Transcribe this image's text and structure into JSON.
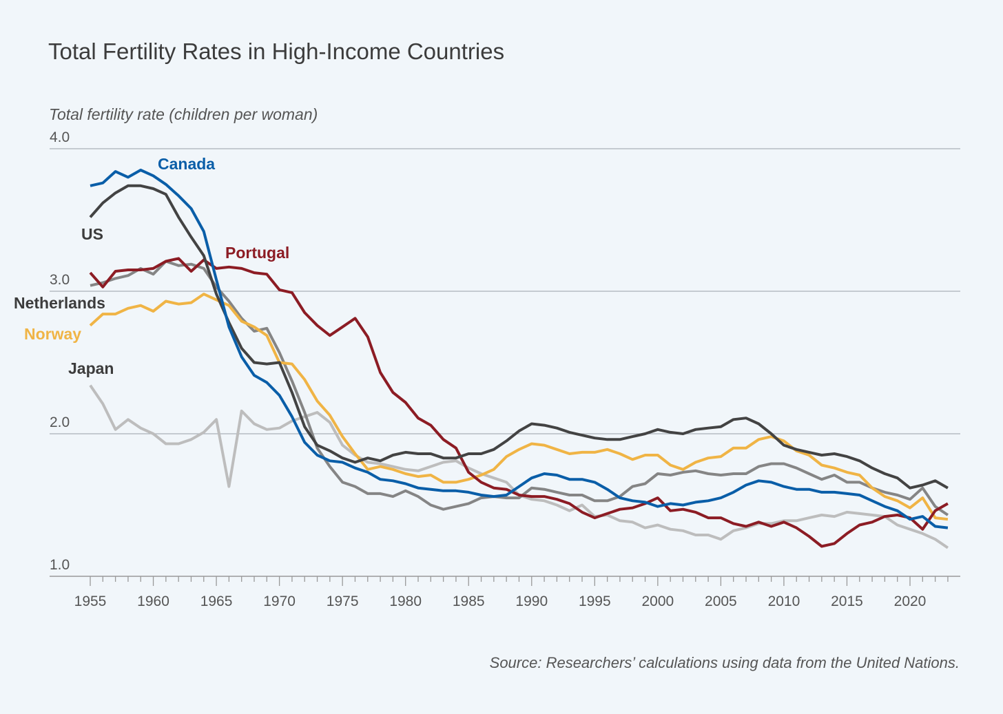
{
  "chart_data": {
    "type": "line",
    "title": "Total Fertility Rates in High-Income Countries",
    "ylabel": "Total fertility rate (children per woman)",
    "xlabel": "",
    "source": "Source: Researchers’ calculations using data from the United Nations.",
    "ylim": [
      1.0,
      4.0
    ],
    "yticks": [
      "1.0",
      "2.0",
      "3.0",
      "4.0"
    ],
    "xlim": [
      1955,
      2023
    ],
    "xticks": [
      "1955",
      "1960",
      "1965",
      "1970",
      "1975",
      "1980",
      "1985",
      "1990",
      "1995",
      "2000",
      "2005",
      "2010",
      "2015",
      "2020"
    ],
    "grid": "horizontal",
    "x_start": 1955,
    "series": [
      {
        "name": "Japan",
        "color": "#bdbdbd",
        "label_color": "#3c3c3c",
        "values": [
          2.34,
          2.21,
          2.03,
          2.1,
          2.04,
          2.0,
          1.93,
          1.93,
          1.96,
          2.01,
          2.1,
          1.63,
          2.16,
          2.07,
          2.03,
          2.04,
          2.09,
          2.12,
          2.15,
          2.08,
          1.92,
          1.85,
          1.8,
          1.79,
          1.77,
          1.75,
          1.74,
          1.77,
          1.8,
          1.81,
          1.76,
          1.72,
          1.69,
          1.66,
          1.57,
          1.54,
          1.53,
          1.5,
          1.46,
          1.5,
          1.42,
          1.43,
          1.39,
          1.38,
          1.34,
          1.36,
          1.33,
          1.32,
          1.29,
          1.29,
          1.26,
          1.32,
          1.34,
          1.37,
          1.37,
          1.39,
          1.39,
          1.41,
          1.43,
          1.42,
          1.45,
          1.44,
          1.43,
          1.42,
          1.36,
          1.33,
          1.3,
          1.26,
          1.2
        ]
      },
      {
        "name": "Netherlands",
        "color": "#858585",
        "label_color": "#3c3c3c",
        "values": [
          3.04,
          3.06,
          3.09,
          3.11,
          3.16,
          3.12,
          3.21,
          3.18,
          3.19,
          3.16,
          3.03,
          2.93,
          2.81,
          2.72,
          2.74,
          2.57,
          2.37,
          2.15,
          1.9,
          1.77,
          1.66,
          1.63,
          1.58,
          1.58,
          1.56,
          1.6,
          1.56,
          1.5,
          1.47,
          1.49,
          1.51,
          1.55,
          1.56,
          1.55,
          1.55,
          1.62,
          1.61,
          1.59,
          1.57,
          1.57,
          1.53,
          1.53,
          1.56,
          1.63,
          1.65,
          1.72,
          1.71,
          1.73,
          1.74,
          1.72,
          1.71,
          1.72,
          1.72,
          1.77,
          1.79,
          1.79,
          1.76,
          1.72,
          1.68,
          1.71,
          1.66,
          1.66,
          1.62,
          1.59,
          1.57,
          1.54,
          1.62,
          1.49,
          1.43
        ]
      },
      {
        "name": "Norway",
        "color": "#f0b445",
        "label_color": "#f0b445",
        "values": [
          2.76,
          2.84,
          2.84,
          2.88,
          2.9,
          2.86,
          2.93,
          2.91,
          2.92,
          2.98,
          2.94,
          2.9,
          2.79,
          2.75,
          2.69,
          2.5,
          2.49,
          2.38,
          2.23,
          2.13,
          1.98,
          1.86,
          1.75,
          1.77,
          1.75,
          1.72,
          1.7,
          1.71,
          1.66,
          1.66,
          1.68,
          1.71,
          1.75,
          1.84,
          1.89,
          1.93,
          1.92,
          1.89,
          1.86,
          1.87,
          1.87,
          1.89,
          1.86,
          1.82,
          1.85,
          1.85,
          1.78,
          1.75,
          1.8,
          1.83,
          1.84,
          1.9,
          1.9,
          1.96,
          1.98,
          1.95,
          1.88,
          1.85,
          1.78,
          1.76,
          1.73,
          1.71,
          1.62,
          1.56,
          1.53,
          1.48,
          1.55,
          1.41,
          1.4
        ]
      },
      {
        "name": "Portugal",
        "color": "#8c1c24",
        "label_color": "#8c1c24",
        "values": [
          3.13,
          3.03,
          3.14,
          3.15,
          3.15,
          3.16,
          3.21,
          3.23,
          3.14,
          3.22,
          3.16,
          3.17,
          3.16,
          3.13,
          3.12,
          3.01,
          2.99,
          2.85,
          2.76,
          2.69,
          2.75,
          2.81,
          2.68,
          2.43,
          2.29,
          2.22,
          2.11,
          2.06,
          1.96,
          1.9,
          1.73,
          1.66,
          1.62,
          1.61,
          1.57,
          1.56,
          1.56,
          1.54,
          1.51,
          1.45,
          1.41,
          1.44,
          1.47,
          1.48,
          1.51,
          1.55,
          1.46,
          1.47,
          1.45,
          1.41,
          1.41,
          1.37,
          1.35,
          1.38,
          1.35,
          1.38,
          1.34,
          1.28,
          1.21,
          1.23,
          1.3,
          1.36,
          1.38,
          1.42,
          1.43,
          1.41,
          1.33,
          1.46,
          1.51
        ]
      },
      {
        "name": "US",
        "color": "#434343",
        "label_color": "#3c3c3c",
        "values": [
          3.52,
          3.62,
          3.69,
          3.74,
          3.74,
          3.72,
          3.68,
          3.52,
          3.38,
          3.25,
          2.98,
          2.78,
          2.6,
          2.5,
          2.49,
          2.5,
          2.29,
          2.05,
          1.92,
          1.88,
          1.83,
          1.8,
          1.83,
          1.81,
          1.85,
          1.87,
          1.86,
          1.86,
          1.83,
          1.83,
          1.86,
          1.86,
          1.89,
          1.95,
          2.02,
          2.07,
          2.06,
          2.04,
          2.01,
          1.99,
          1.97,
          1.96,
          1.96,
          1.98,
          2.0,
          2.03,
          2.01,
          2.0,
          2.03,
          2.04,
          2.05,
          2.1,
          2.11,
          2.07,
          2.0,
          1.92,
          1.89,
          1.87,
          1.85,
          1.86,
          1.84,
          1.81,
          1.76,
          1.72,
          1.69,
          1.62,
          1.64,
          1.67,
          1.62
        ]
      },
      {
        "name": "Canada",
        "color": "#0a5ea8",
        "label_color": "#0a5ea8",
        "values": [
          3.74,
          3.76,
          3.84,
          3.8,
          3.85,
          3.81,
          3.75,
          3.67,
          3.58,
          3.42,
          3.08,
          2.75,
          2.54,
          2.41,
          2.36,
          2.27,
          2.12,
          1.94,
          1.85,
          1.81,
          1.8,
          1.76,
          1.73,
          1.68,
          1.67,
          1.65,
          1.62,
          1.61,
          1.6,
          1.6,
          1.59,
          1.57,
          1.56,
          1.57,
          1.63,
          1.69,
          1.72,
          1.71,
          1.68,
          1.68,
          1.66,
          1.61,
          1.55,
          1.53,
          1.52,
          1.49,
          1.51,
          1.5,
          1.52,
          1.53,
          1.55,
          1.59,
          1.64,
          1.67,
          1.66,
          1.63,
          1.61,
          1.61,
          1.59,
          1.59,
          1.58,
          1.57,
          1.53,
          1.49,
          1.46,
          1.4,
          1.42,
          1.35,
          1.34
        ]
      }
    ]
  }
}
